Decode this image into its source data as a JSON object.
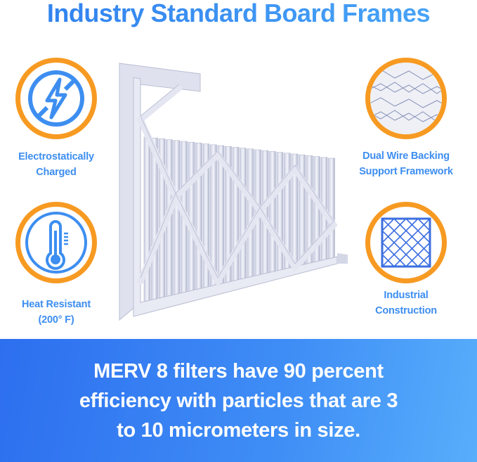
{
  "title": "Industry Standard Board Frames",
  "features": [
    {
      "icon": "no-static-lightning-icon",
      "label_lines": [
        "Electrostatically",
        "Charged"
      ]
    },
    {
      "icon": "thermometer-icon",
      "label_lines": [
        "Heat Resistant",
        "(200° F)"
      ]
    },
    {
      "icon": "wire-mesh-icon",
      "label_lines": [
        "Dual Wire Backing",
        "Support Framework"
      ]
    },
    {
      "icon": "grid-frame-icon",
      "label_lines": [
        "Industrial",
        "Construction"
      ]
    }
  ],
  "banner": {
    "lines": [
      "MERV 8 filters have 90 percent",
      "efficiency with particles that are 3",
      "to 10 micrometers in size."
    ]
  },
  "colors": {
    "accent_blue": "#3d8ef0",
    "ring_orange": "#f79a22",
    "banner_start": "#2d6fef",
    "banner_end": "#58aefb"
  }
}
